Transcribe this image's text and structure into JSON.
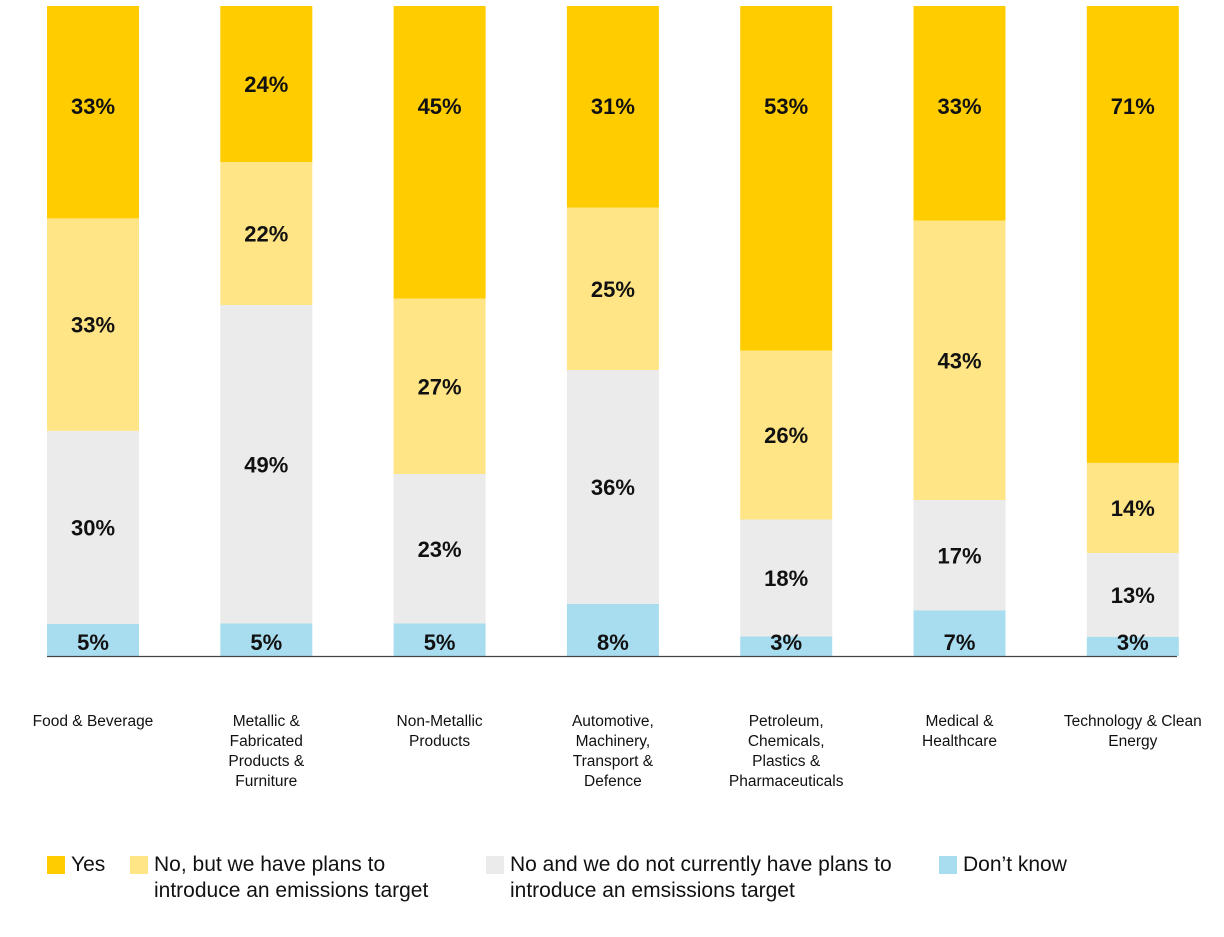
{
  "colors": {
    "yes": "#FFCC00",
    "plans": "#FFE585",
    "no_plans": "#EBEBEB",
    "dont_know": "#A8DDF0",
    "axis": "#444444"
  },
  "legend": [
    {
      "key": "yes",
      "label": "Yes",
      "color": "#FFCC00"
    },
    {
      "key": "plans",
      "label": "No, but we have plans to introduce an emissions target",
      "color": "#FFE585"
    },
    {
      "key": "no_plans",
      "label": "No and we do not currently have plans to introduce an emsissions target",
      "color": "#EBEBEB"
    },
    {
      "key": "dont_know",
      "label": "Don’t know",
      "color": "#A8DDF0"
    }
  ],
  "chart_data": {
    "type": "bar",
    "stacked": true,
    "orientation": "vertical",
    "legend_position": "bottom",
    "grid": false,
    "title": "",
    "xlabel": "",
    "ylabel": "",
    "ylim": [
      0,
      100
    ],
    "categories": [
      "Food & Beverage",
      "Metallic & Fabricated Products & Furniture",
      "Non-Metallic Products",
      "Automotive, Machinery, Transport & Defence",
      "Petroleum, Chemicals, Plastics & Pharmaceuticals",
      "Medical & Healthcare",
      "Technology & Clean Energy"
    ],
    "series": [
      {
        "name": "Don’t know",
        "key": "dont_know",
        "values": [
          5,
          5,
          5,
          8,
          3,
          7,
          3
        ],
        "labels": [
          "5%",
          "5%",
          "5%",
          "8%",
          "3%",
          "7%",
          "3%"
        ]
      },
      {
        "name": "No and we do not currently have plans to introduce an emsissions target",
        "key": "no_plans",
        "values": [
          30,
          49,
          23,
          36,
          18,
          17,
          13
        ],
        "labels": [
          "30%",
          "49%",
          "23%",
          "36%",
          "18%",
          "17%",
          "13%"
        ]
      },
      {
        "name": "No, but we have plans to introduce an emissions target",
        "key": "plans",
        "values": [
          33,
          22,
          27,
          25,
          26,
          43,
          14
        ],
        "labels": [
          "33%",
          "22%",
          "27%",
          "25%",
          "26%",
          "43%",
          "14%"
        ]
      },
      {
        "name": "Yes",
        "key": "yes",
        "values": [
          33,
          24,
          45,
          31,
          53,
          33,
          71
        ],
        "labels": [
          "33%",
          "24%",
          "45%",
          "31%",
          "53%",
          "33%",
          "71%"
        ]
      }
    ]
  }
}
